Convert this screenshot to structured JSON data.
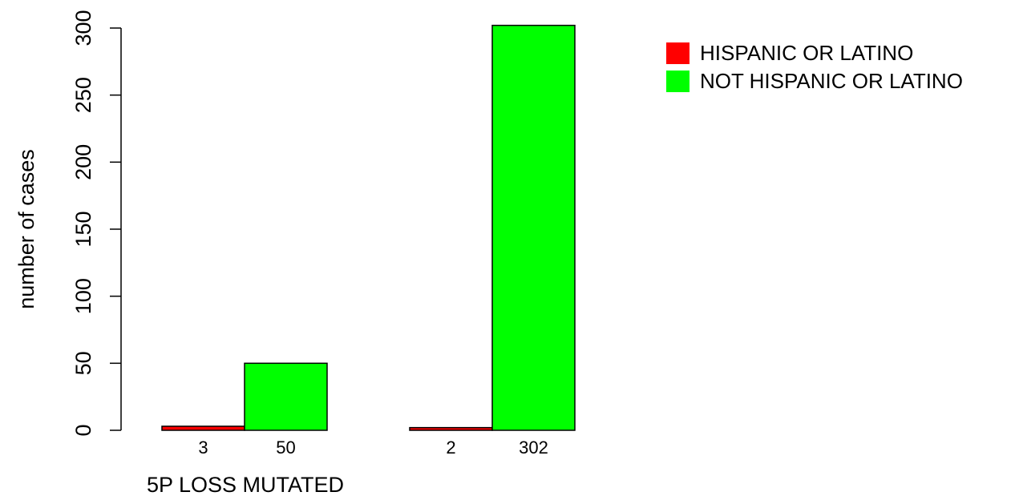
{
  "chart_data": {
    "type": "bar",
    "title": "",
    "xlabel": "5P LOSS MUTATED",
    "ylabel": "number of cases",
    "ylim": [
      0,
      300
    ],
    "yticks": [
      0,
      50,
      100,
      150,
      200,
      250,
      300
    ],
    "grid": false,
    "legend_position": "top-right",
    "groups": [
      {
        "label": "",
        "values": [
          3,
          50
        ],
        "value_labels": [
          "3",
          "50"
        ]
      },
      {
        "label": "",
        "values": [
          2,
          302
        ],
        "value_labels": [
          "2",
          "302"
        ]
      }
    ],
    "series": [
      {
        "name": "HISPANIC OR LATINO",
        "color": "#ff0000"
      },
      {
        "name": "NOT HISPANIC OR LATINO",
        "color": "#00ff00"
      }
    ]
  }
}
